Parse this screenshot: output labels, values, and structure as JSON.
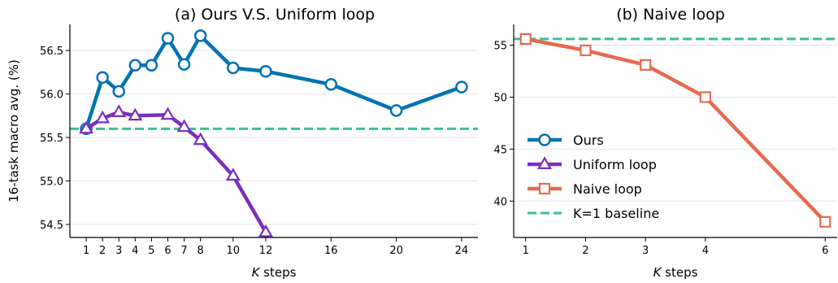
{
  "chart_data": [
    {
      "type": "line",
      "title": "(a) Ours V.S. Uniform loop",
      "xlabel_italic": "K",
      "xlabel_rest": " steps",
      "ylabel": "16-task macro avg. (%)",
      "xlim": [
        0,
        25
      ],
      "ylim": [
        54.35,
        56.8
      ],
      "xticks": [
        1,
        2,
        3,
        4,
        5,
        6,
        7,
        8,
        10,
        12,
        16,
        20,
        24
      ],
      "yticks": [
        54.5,
        55.0,
        55.5,
        56.0,
        56.5
      ],
      "ytick_labels": [
        "54.5",
        "55.0",
        "55.5",
        "56.0",
        "56.5"
      ],
      "grid": "y",
      "series": [
        {
          "name": "Ours",
          "color": "#0173b2",
          "marker": "circle",
          "x": [
            1,
            2,
            3,
            4,
            5,
            6,
            7,
            8,
            10,
            12,
            16,
            20,
            24
          ],
          "y": [
            55.6,
            56.19,
            56.03,
            56.33,
            56.33,
            56.64,
            56.34,
            56.67,
            56.3,
            56.26,
            56.11,
            55.81,
            56.08
          ]
        },
        {
          "name": "Uniform loop",
          "color": "#7b2fbe",
          "marker": "triangle",
          "x": [
            1,
            2,
            3,
            4,
            6,
            7,
            8,
            10,
            12
          ],
          "y": [
            55.6,
            55.72,
            55.79,
            55.75,
            55.76,
            55.62,
            55.47,
            55.06,
            54.41
          ]
        }
      ],
      "baseline": {
        "name": "K=1 baseline",
        "y": 55.6,
        "color": "#3dbe96"
      }
    },
    {
      "type": "line",
      "title": "(b) Naive loop",
      "xlabel_italic": "K",
      "xlabel_rest": " steps",
      "ylabel": "",
      "xlim": [
        0.8,
        6.2
      ],
      "ylim": [
        36.5,
        57.0
      ],
      "xticks": [
        1,
        2,
        3,
        4,
        6
      ],
      "yticks": [
        40,
        45,
        50,
        55
      ],
      "ytick_labels": [
        "40",
        "45",
        "50",
        "55"
      ],
      "grid": "y",
      "series": [
        {
          "name": "Naive loop",
          "color": "#e66a4f",
          "marker": "square",
          "x": [
            1,
            2,
            3,
            4,
            6
          ],
          "y": [
            55.6,
            54.5,
            53.1,
            50.0,
            38.0
          ]
        }
      ],
      "baseline": {
        "name": "K=1 baseline",
        "y": 55.6,
        "color": "#3dbe96"
      },
      "legend": {
        "placement": "center-left",
        "entries": [
          {
            "label": "Ours",
            "color": "#0173b2",
            "marker": "circle"
          },
          {
            "label": "Uniform loop",
            "color": "#7b2fbe",
            "marker": "triangle"
          },
          {
            "label": "Naive loop",
            "color": "#e66a4f",
            "marker": "square"
          },
          {
            "label": "K=1 baseline",
            "color": "#3dbe96",
            "marker": "dashed"
          }
        ]
      }
    }
  ]
}
